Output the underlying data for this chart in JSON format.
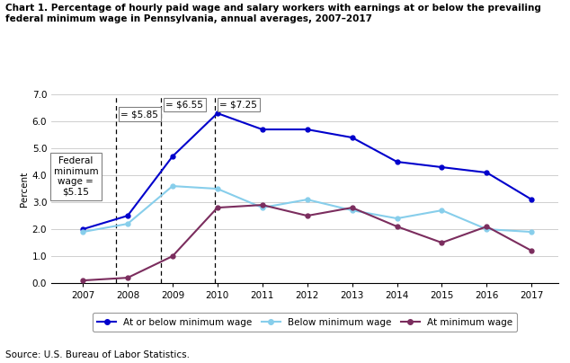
{
  "title_line1": "Chart 1. Percentage of hourly paid wage and salary workers with earnings at or below the prevailing",
  "title_line2": "federal minimum wage in Pennsylvania, annual averages, 2007–2017",
  "ylabel": "Percent",
  "source": "Source: U.S. Bureau of Labor Statistics.",
  "years": [
    2007,
    2008,
    2009,
    2010,
    2011,
    2012,
    2013,
    2014,
    2015,
    2016,
    2017
  ],
  "at_or_below": [
    2.0,
    2.5,
    4.7,
    6.3,
    5.7,
    5.7,
    5.4,
    4.5,
    4.3,
    4.1,
    3.1
  ],
  "below": [
    1.9,
    2.2,
    3.6,
    3.5,
    2.8,
    3.1,
    2.7,
    2.4,
    2.7,
    2.0,
    1.9
  ],
  "at": [
    0.1,
    0.2,
    1.0,
    2.8,
    2.9,
    2.5,
    2.8,
    2.1,
    1.5,
    2.1,
    1.2
  ],
  "color_blue": "#0000CC",
  "color_light_blue": "#87CEEB",
  "color_maroon": "#7B2D5E",
  "ylim_min": 0.0,
  "ylim_max": 7.0,
  "ytick_labels": [
    "0.0",
    "1.0",
    "2.0",
    "3.0",
    "4.0",
    "5.0",
    "6.0",
    "7.0"
  ],
  "vline_x": [
    2007.75,
    2008.75,
    2009.95
  ],
  "vline_labels": [
    "= $5.85",
    "= $6.55",
    "= $7.25"
  ],
  "fed_min_box_text": "Federal\nminimum\nwage =\n$5.15",
  "legend_labels": [
    "At or below minimum wage",
    "Below minimum wage",
    "At minimum wage"
  ]
}
